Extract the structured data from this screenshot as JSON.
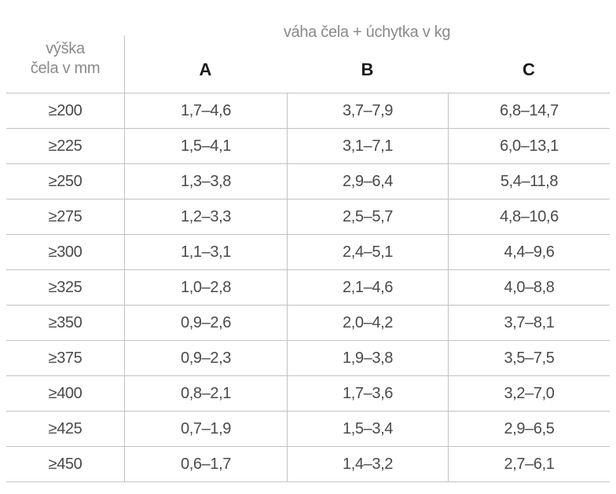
{
  "table": {
    "group_header": "váha čela + úchytka v kg",
    "row_header_line1": "výška",
    "row_header_line2": "čela v mm",
    "columns": [
      "A",
      "B",
      "C"
    ],
    "rows": [
      {
        "height": "≥200",
        "a": "1,7–4,6",
        "b": "3,7–7,9",
        "c": "6,8–14,7"
      },
      {
        "height": "≥225",
        "a": "1,5–4,1",
        "b": "3,1–7,1",
        "c": "6,0–13,1"
      },
      {
        "height": "≥250",
        "a": "1,3–3,8",
        "b": "2,9–6,4",
        "c": "5,4–11,8"
      },
      {
        "height": "≥275",
        "a": "1,2–3,3",
        "b": "2,5–5,7",
        "c": "4,8–10,6"
      },
      {
        "height": "≥300",
        "a": "1,1–3,1",
        "b": "2,4–5,1",
        "c": "4,4–9,6"
      },
      {
        "height": "≥325",
        "a": "1,0–2,8",
        "b": "2,1–4,6",
        "c": "4,0–8,8"
      },
      {
        "height": "≥350",
        "a": "0,9–2,6",
        "b": "2,0–4,2",
        "c": "3,7–8,1"
      },
      {
        "height": "≥375",
        "a": "0,9–2,3",
        "b": "1,9–3,8",
        "c": "3,5–7,5"
      },
      {
        "height": "≥400",
        "a": "0,8–2,1",
        "b": "1,7–3,6",
        "c": "3,2–7,0"
      },
      {
        "height": "≥425",
        "a": "0,7–1,9",
        "b": "1,5–3,4",
        "c": "2,9–6,5"
      },
      {
        "height": "≥450",
        "a": "0,6–1,7",
        "b": "1,4–3,2",
        "c": "2,7–6,1"
      }
    ]
  },
  "colors": {
    "border": "#c2c2c2",
    "data_text": "#4a4a4a",
    "muted_header_text": "#8a8a8a",
    "column_letter_text": "#1b1b1b",
    "background": "#ffffff"
  }
}
